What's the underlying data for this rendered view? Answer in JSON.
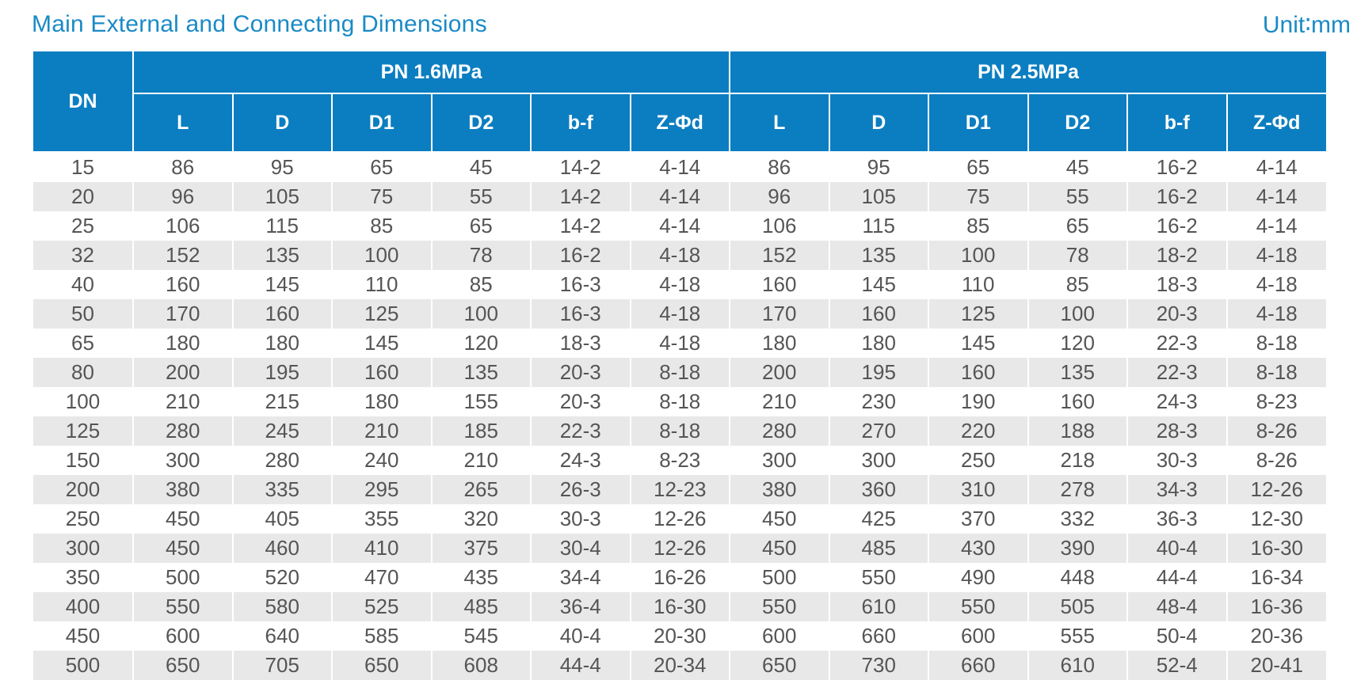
{
  "title": "Main External and Connecting Dimensions",
  "unit": "Unit∶mm",
  "header": {
    "dn": "DN",
    "group1": "PN 1.6MPa",
    "group2": "PN 2.5MPa",
    "cols": [
      "L",
      "D",
      "D1",
      "D2",
      "b-f",
      "Z-Φd"
    ]
  },
  "rows": [
    [
      "15",
      "86",
      "95",
      "65",
      "45",
      "14-2",
      "4-14",
      "86",
      "95",
      "65",
      "45",
      "16-2",
      "4-14"
    ],
    [
      "20",
      "96",
      "105",
      "75",
      "55",
      "14-2",
      "4-14",
      "96",
      "105",
      "75",
      "55",
      "16-2",
      "4-14"
    ],
    [
      "25",
      "106",
      "115",
      "85",
      "65",
      "14-2",
      "4-14",
      "106",
      "115",
      "85",
      "65",
      "16-2",
      "4-14"
    ],
    [
      "32",
      "152",
      "135",
      "100",
      "78",
      "16-2",
      "4-18",
      "152",
      "135",
      "100",
      "78",
      "18-2",
      "4-18"
    ],
    [
      "40",
      "160",
      "145",
      "110",
      "85",
      "16-3",
      "4-18",
      "160",
      "145",
      "110",
      "85",
      "18-3",
      "4-18"
    ],
    [
      "50",
      "170",
      "160",
      "125",
      "100",
      "16-3",
      "4-18",
      "170",
      "160",
      "125",
      "100",
      "20-3",
      "4-18"
    ],
    [
      "65",
      "180",
      "180",
      "145",
      "120",
      "18-3",
      "4-18",
      "180",
      "180",
      "145",
      "120",
      "22-3",
      "8-18"
    ],
    [
      "80",
      "200",
      "195",
      "160",
      "135",
      "20-3",
      "8-18",
      "200",
      "195",
      "160",
      "135",
      "22-3",
      "8-18"
    ],
    [
      "100",
      "210",
      "215",
      "180",
      "155",
      "20-3",
      "8-18",
      "210",
      "230",
      "190",
      "160",
      "24-3",
      "8-23"
    ],
    [
      "125",
      "280",
      "245",
      "210",
      "185",
      "22-3",
      "8-18",
      "280",
      "270",
      "220",
      "188",
      "28-3",
      "8-26"
    ],
    [
      "150",
      "300",
      "280",
      "240",
      "210",
      "24-3",
      "8-23",
      "300",
      "300",
      "250",
      "218",
      "30-3",
      "8-26"
    ],
    [
      "200",
      "380",
      "335",
      "295",
      "265",
      "26-3",
      "12-23",
      "380",
      "360",
      "310",
      "278",
      "34-3",
      "12-26"
    ],
    [
      "250",
      "450",
      "405",
      "355",
      "320",
      "30-3",
      "12-26",
      "450",
      "425",
      "370",
      "332",
      "36-3",
      "12-30"
    ],
    [
      "300",
      "450",
      "460",
      "410",
      "375",
      "30-4",
      "12-26",
      "450",
      "485",
      "430",
      "390",
      "40-4",
      "16-30"
    ],
    [
      "350",
      "500",
      "520",
      "470",
      "435",
      "34-4",
      "16-26",
      "500",
      "550",
      "490",
      "448",
      "44-4",
      "16-34"
    ],
    [
      "400",
      "550",
      "580",
      "525",
      "485",
      "36-4",
      "16-30",
      "550",
      "610",
      "550",
      "505",
      "48-4",
      "16-36"
    ],
    [
      "450",
      "600",
      "640",
      "585",
      "545",
      "40-4",
      "20-30",
      "600",
      "660",
      "600",
      "555",
      "50-4",
      "20-36"
    ],
    [
      "500",
      "650",
      "705",
      "650",
      "608",
      "44-4",
      "20-34",
      "650",
      "730",
      "660",
      "610",
      "52-4",
      "20-41"
    ]
  ]
}
